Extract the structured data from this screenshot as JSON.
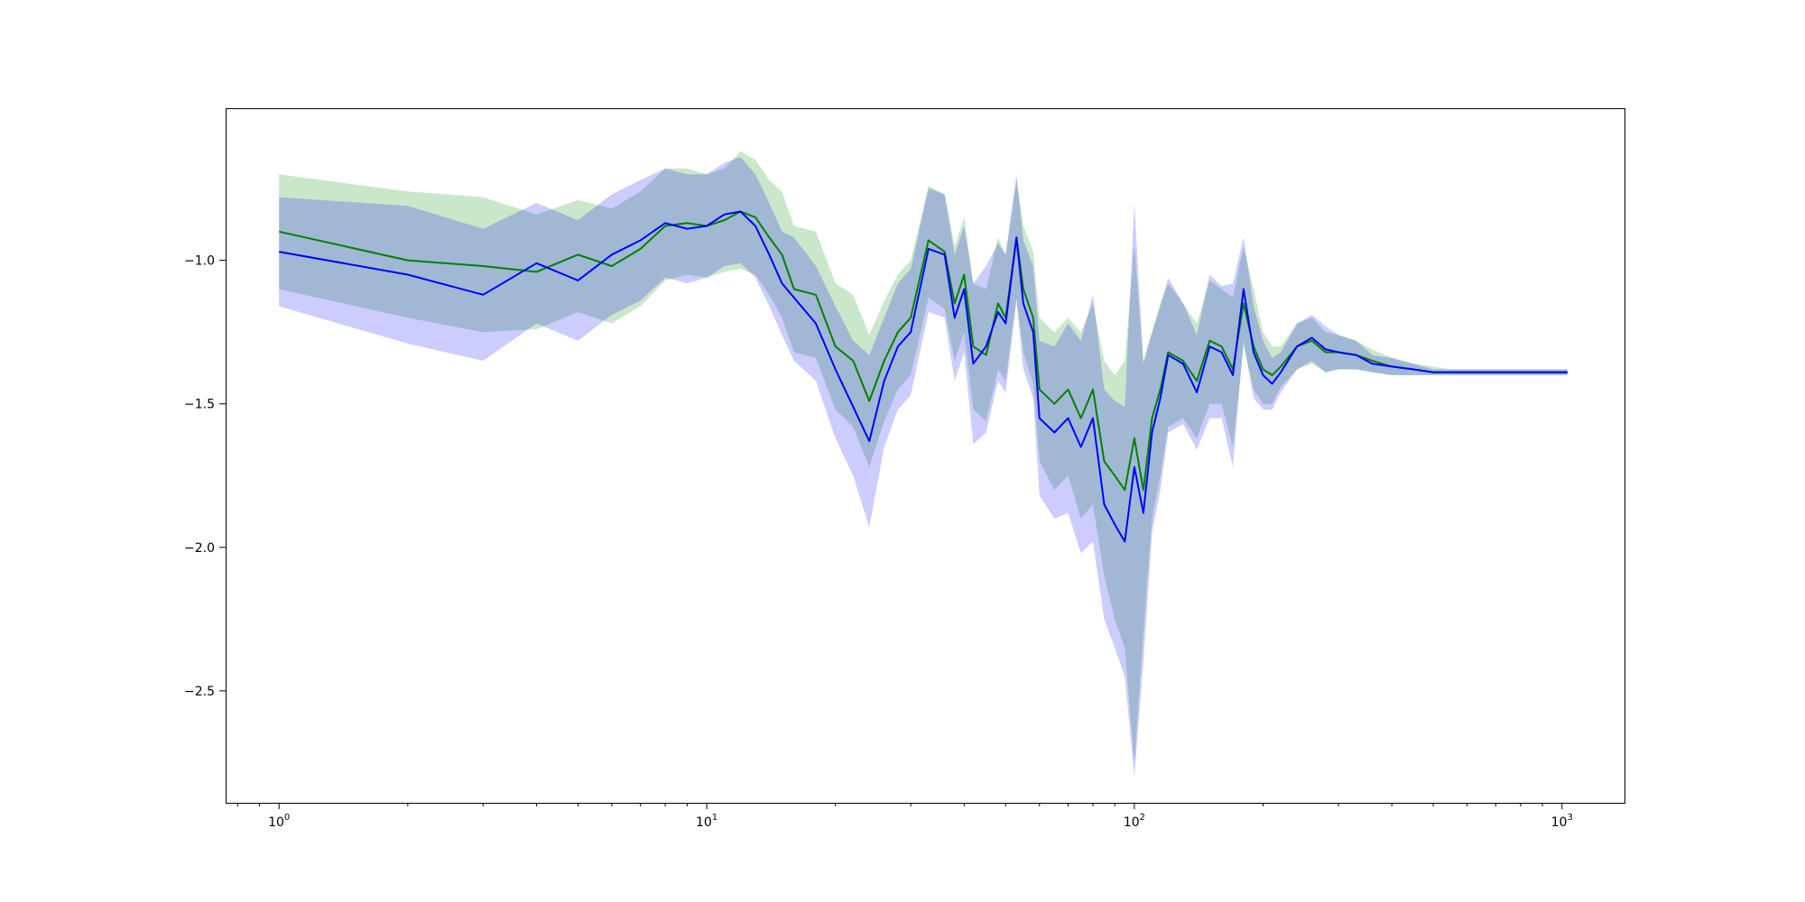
{
  "chart_data": {
    "type": "line",
    "title": "",
    "xlabel": "",
    "ylabel": "",
    "xscale": "log",
    "xlim": [
      0.75,
      1400
    ],
    "ylim": [
      -2.89,
      -0.47
    ],
    "grid": false,
    "legend": "none",
    "x_ticks": [
      {
        "value": 1,
        "base": "10",
        "exp": "0"
      },
      {
        "value": 10,
        "base": "10",
        "exp": "1"
      },
      {
        "value": 100,
        "base": "10",
        "exp": "2"
      },
      {
        "value": 1000,
        "base": "10",
        "exp": "3"
      }
    ],
    "y_ticks": [
      {
        "value": -1.0,
        "label": "−1.0"
      },
      {
        "value": -1.5,
        "label": "−1.5"
      },
      {
        "value": -2.0,
        "label": "−2.0"
      },
      {
        "value": -2.5,
        "label": "−2.5"
      }
    ],
    "series": [
      {
        "color": "#008000",
        "band_color": "#2ca02c",
        "band_opacity": 0.25,
        "x": [
          1,
          2,
          3,
          4,
          5,
          6,
          7,
          8,
          9,
          10,
          11,
          12,
          13,
          14,
          15,
          16,
          18,
          20,
          22,
          24,
          26,
          28,
          30,
          33,
          36,
          38,
          40,
          42,
          45,
          48,
          50,
          53,
          55,
          58,
          60,
          65,
          70,
          75,
          80,
          85,
          90,
          95,
          100,
          105,
          110,
          115,
          120,
          130,
          140,
          150,
          160,
          170,
          180,
          190,
          200,
          210,
          220,
          240,
          260,
          280,
          300,
          330,
          360,
          400,
          450,
          500,
          550,
          600,
          700,
          800,
          900,
          1030
        ],
        "y": [
          -0.9,
          -1.0,
          -1.02,
          -1.04,
          -0.98,
          -1.02,
          -0.96,
          -0.88,
          -0.87,
          -0.88,
          -0.86,
          -0.83,
          -0.85,
          -0.92,
          -0.98,
          -1.1,
          -1.12,
          -1.3,
          -1.35,
          -1.49,
          -1.35,
          -1.25,
          -1.2,
          -0.93,
          -0.97,
          -1.15,
          -1.05,
          -1.3,
          -1.33,
          -1.15,
          -1.2,
          -0.92,
          -1.1,
          -1.2,
          -1.45,
          -1.5,
          -1.45,
          -1.55,
          -1.45,
          -1.7,
          -1.75,
          -1.8,
          -1.62,
          -1.8,
          -1.55,
          -1.45,
          -1.32,
          -1.35,
          -1.42,
          -1.28,
          -1.3,
          -1.38,
          -1.15,
          -1.3,
          -1.38,
          -1.4,
          -1.37,
          -1.3,
          -1.28,
          -1.32,
          -1.32,
          -1.33,
          -1.35,
          -1.37,
          -1.38,
          -1.39,
          -1.39,
          -1.39,
          -1.39,
          -1.39,
          -1.39,
          -1.39
        ],
        "lower": [
          -1.1,
          -1.2,
          -1.25,
          -1.24,
          -1.18,
          -1.22,
          -1.16,
          -1.07,
          -1.05,
          -1.06,
          -1.04,
          -1.03,
          -1.05,
          -1.12,
          -1.2,
          -1.32,
          -1.34,
          -1.52,
          -1.58,
          -1.72,
          -1.56,
          -1.45,
          -1.4,
          -1.13,
          -1.17,
          -1.35,
          -1.25,
          -1.52,
          -1.56,
          -1.38,
          -1.42,
          -1.13,
          -1.32,
          -1.43,
          -1.7,
          -1.8,
          -1.75,
          -1.9,
          -1.85,
          -2.1,
          -2.25,
          -2.35,
          -2.75,
          -2.3,
          -1.9,
          -1.75,
          -1.58,
          -1.55,
          -1.62,
          -1.5,
          -1.5,
          -1.65,
          -1.3,
          -1.45,
          -1.5,
          -1.5,
          -1.44,
          -1.38,
          -1.36,
          -1.39,
          -1.38,
          -1.38,
          -1.39,
          -1.4,
          -1.4,
          -1.4,
          -1.4,
          -1.4,
          -1.4,
          -1.4,
          -1.4,
          -1.4
        ],
        "upper": [
          -0.7,
          -0.76,
          -0.78,
          -0.84,
          -0.79,
          -0.82,
          -0.76,
          -0.68,
          -0.68,
          -0.7,
          -0.68,
          -0.62,
          -0.65,
          -0.72,
          -0.76,
          -0.88,
          -0.9,
          -1.08,
          -1.12,
          -1.26,
          -1.14,
          -1.05,
          -1.0,
          -0.74,
          -0.77,
          -0.95,
          -0.85,
          -1.08,
          -1.1,
          -0.92,
          -0.98,
          -0.72,
          -0.88,
          -0.97,
          -1.2,
          -1.25,
          -1.2,
          -1.25,
          -1.15,
          -1.35,
          -1.4,
          -1.35,
          -0.95,
          -1.35,
          -1.25,
          -1.15,
          -1.08,
          -1.15,
          -1.22,
          -1.07,
          -1.1,
          -1.13,
          -0.95,
          -1.1,
          -1.25,
          -1.3,
          -1.3,
          -1.22,
          -1.2,
          -1.25,
          -1.26,
          -1.28,
          -1.31,
          -1.34,
          -1.36,
          -1.37,
          -1.38,
          -1.38,
          -1.38,
          -1.38,
          -1.38,
          -1.38
        ]
      },
      {
        "color": "#0000ff",
        "band_color": "#0000ff",
        "band_opacity": 0.2,
        "x": [
          1,
          2,
          3,
          4,
          5,
          6,
          7,
          8,
          9,
          10,
          11,
          12,
          13,
          14,
          15,
          16,
          18,
          20,
          22,
          24,
          26,
          28,
          30,
          33,
          36,
          38,
          40,
          42,
          45,
          48,
          50,
          53,
          55,
          58,
          60,
          65,
          70,
          75,
          80,
          85,
          90,
          95,
          100,
          105,
          110,
          115,
          120,
          130,
          140,
          150,
          160,
          170,
          180,
          190,
          200,
          210,
          220,
          240,
          260,
          280,
          300,
          330,
          360,
          400,
          450,
          500,
          550,
          600,
          700,
          800,
          900,
          1030
        ],
        "y": [
          -0.97,
          -1.05,
          -1.12,
          -1.01,
          -1.07,
          -0.98,
          -0.93,
          -0.87,
          -0.89,
          -0.88,
          -0.84,
          -0.83,
          -0.88,
          -0.98,
          -1.08,
          -1.13,
          -1.22,
          -1.38,
          -1.51,
          -1.63,
          -1.42,
          -1.3,
          -1.25,
          -0.96,
          -0.98,
          -1.2,
          -1.1,
          -1.36,
          -1.3,
          -1.18,
          -1.22,
          -0.92,
          -1.15,
          -1.25,
          -1.55,
          -1.6,
          -1.55,
          -1.65,
          -1.55,
          -1.85,
          -1.92,
          -1.98,
          -1.72,
          -1.88,
          -1.6,
          -1.48,
          -1.33,
          -1.36,
          -1.46,
          -1.3,
          -1.32,
          -1.4,
          -1.1,
          -1.32,
          -1.4,
          -1.43,
          -1.39,
          -1.3,
          -1.27,
          -1.31,
          -1.32,
          -1.33,
          -1.36,
          -1.37,
          -1.38,
          -1.39,
          -1.39,
          -1.39,
          -1.39,
          -1.39,
          -1.39,
          -1.39
        ],
        "lower": [
          -1.16,
          -1.29,
          -1.35,
          -1.22,
          -1.28,
          -1.19,
          -1.14,
          -1.06,
          -1.08,
          -1.06,
          -1.02,
          -1.01,
          -1.06,
          -1.16,
          -1.26,
          -1.35,
          -1.42,
          -1.62,
          -1.75,
          -1.93,
          -1.65,
          -1.52,
          -1.47,
          -1.18,
          -1.2,
          -1.42,
          -1.32,
          -1.64,
          -1.6,
          -1.42,
          -1.46,
          -1.14,
          -1.38,
          -1.48,
          -1.82,
          -1.9,
          -1.88,
          -2.02,
          -1.98,
          -2.25,
          -2.35,
          -2.45,
          -2.8,
          -2.4,
          -1.95,
          -1.8,
          -1.6,
          -1.57,
          -1.66,
          -1.55,
          -1.55,
          -1.72,
          -1.28,
          -1.48,
          -1.52,
          -1.52,
          -1.46,
          -1.38,
          -1.35,
          -1.39,
          -1.38,
          -1.38,
          -1.39,
          -1.4,
          -1.4,
          -1.4,
          -1.4,
          -1.4,
          -1.4,
          -1.4,
          -1.4,
          -1.4
        ],
        "upper": [
          -0.78,
          -0.81,
          -0.89,
          -0.8,
          -0.86,
          -0.77,
          -0.72,
          -0.68,
          -0.7,
          -0.7,
          -0.66,
          -0.64,
          -0.7,
          -0.8,
          -0.9,
          -0.92,
          -1.02,
          -1.16,
          -1.28,
          -1.33,
          -1.2,
          -1.08,
          -1.03,
          -0.75,
          -0.77,
          -0.98,
          -0.88,
          -1.08,
          -1.02,
          -0.94,
          -0.98,
          -0.7,
          -0.93,
          -1.02,
          -1.28,
          -1.3,
          -1.22,
          -1.28,
          -1.12,
          -1.45,
          -1.49,
          -1.51,
          -0.8,
          -1.36,
          -1.25,
          -1.16,
          -1.06,
          -1.15,
          -1.26,
          -1.05,
          -1.09,
          -1.08,
          -0.92,
          -1.16,
          -1.28,
          -1.34,
          -1.32,
          -1.22,
          -1.19,
          -1.23,
          -1.26,
          -1.28,
          -1.33,
          -1.34,
          -1.36,
          -1.38,
          -1.38,
          -1.38,
          -1.38,
          -1.38,
          -1.38,
          -1.38
        ]
      }
    ]
  }
}
